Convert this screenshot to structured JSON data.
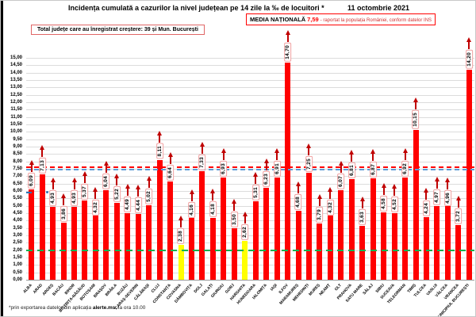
{
  "header": {
    "title": "Incidența cumulată a cazurilor la nivel județean pe 14 zile la ‰ de locuitori *",
    "date": "11 octombrie 2021"
  },
  "growth_box": {
    "text": "Total județe care au înregistrat creștere:  39 și Mun. București"
  },
  "media_box": {
    "label": "MEDIA NAȚIONALĂ",
    "value": "7,59",
    "note": "-  raportat la populația României, conform datelor INS"
  },
  "footer": {
    "prefix": "*prin exportarea datelor din aplicația ",
    "bold": "alerte.ms",
    "suffix": ", la ora 10.00"
  },
  "chart_data": {
    "type": "bar",
    "title": "Incidența cumulată a cazurilor la nivel județean pe 14 zile la ‰ de locuitori",
    "categories": [
      "ALBA",
      "ARAD",
      "ARGEȘ",
      "BACĂU",
      "BIHOR",
      "BISTRIȚA-NĂSĂUD",
      "BOTOȘANI",
      "BRAȘOV",
      "BRĂILA",
      "BUZĂU",
      "CARAȘ-SEVERIN",
      "CĂLĂRAȘI",
      "CLUJ",
      "CONSTANȚA",
      "COVASNA",
      "DÂMBOVIȚA",
      "DOLJ",
      "GALAȚI",
      "GIURGIU",
      "GORJ",
      "HARGHITA",
      "HUNEDOARA",
      "IALOMIȚA",
      "IAȘI",
      "ILFOV",
      "MARAMUREȘ",
      "MEHEDINȚI",
      "MUREȘ",
      "NEAMȚ",
      "OLT",
      "PRAHOVA",
      "SATU MARE",
      "SĂLAJ",
      "SIBIU",
      "SUCEAVA",
      "TELEORMAN",
      "TIMIȘ",
      "TULCEA",
      "VASLUI",
      "VÂLCEA",
      "VRANCEA",
      "MUNICIPIUL BUCUREȘTI"
    ],
    "values": [
      6.09,
      7.13,
      4.93,
      3.86,
      4.93,
      5.37,
      4.32,
      6.04,
      5.22,
      4.49,
      4.44,
      5.02,
      8.11,
      6.64,
      2.38,
      4.16,
      7.33,
      4.18,
      6.93,
      3.5,
      2.62,
      5.31,
      6.23,
      6.91,
      14.7,
      4.68,
      7.25,
      3.79,
      4.32,
      6.07,
      6.81,
      3.63,
      6.87,
      4.58,
      4.52,
      6.92,
      10.15,
      4.24,
      4.97,
      4.96,
      3.72,
      14.2
    ],
    "arrow_direction": "up",
    "bar_color_default": "#ff0000",
    "bar_color_highlight": "#ffff00",
    "highlight_indices": [
      14,
      20
    ],
    "ylim": [
      0,
      15
    ],
    "ytick_step": 0.5,
    "grid": true,
    "reference_lines": [
      {
        "name": "media-nationala",
        "value": 7.59,
        "color": "#ff0000",
        "style": "dashed",
        "dash": 6,
        "gap": 4
      },
      {
        "name": "secondary-blue",
        "value": 7.42,
        "color": "#5b9bd5",
        "style": "dashed",
        "dash": 6,
        "gap": 4
      },
      {
        "name": "threshold-green",
        "value": 2.0,
        "color": "#00b050",
        "style": "dashed",
        "dash": 8,
        "gap": 6
      }
    ],
    "marker_color": "#2e75b6",
    "extra_markers": [
      {
        "x_index": 0,
        "dx": -7,
        "value": 5.9,
        "shape": "dash"
      },
      {
        "x_index": 1,
        "dx": 5,
        "value": 5.95,
        "shape": "dot"
      }
    ]
  }
}
